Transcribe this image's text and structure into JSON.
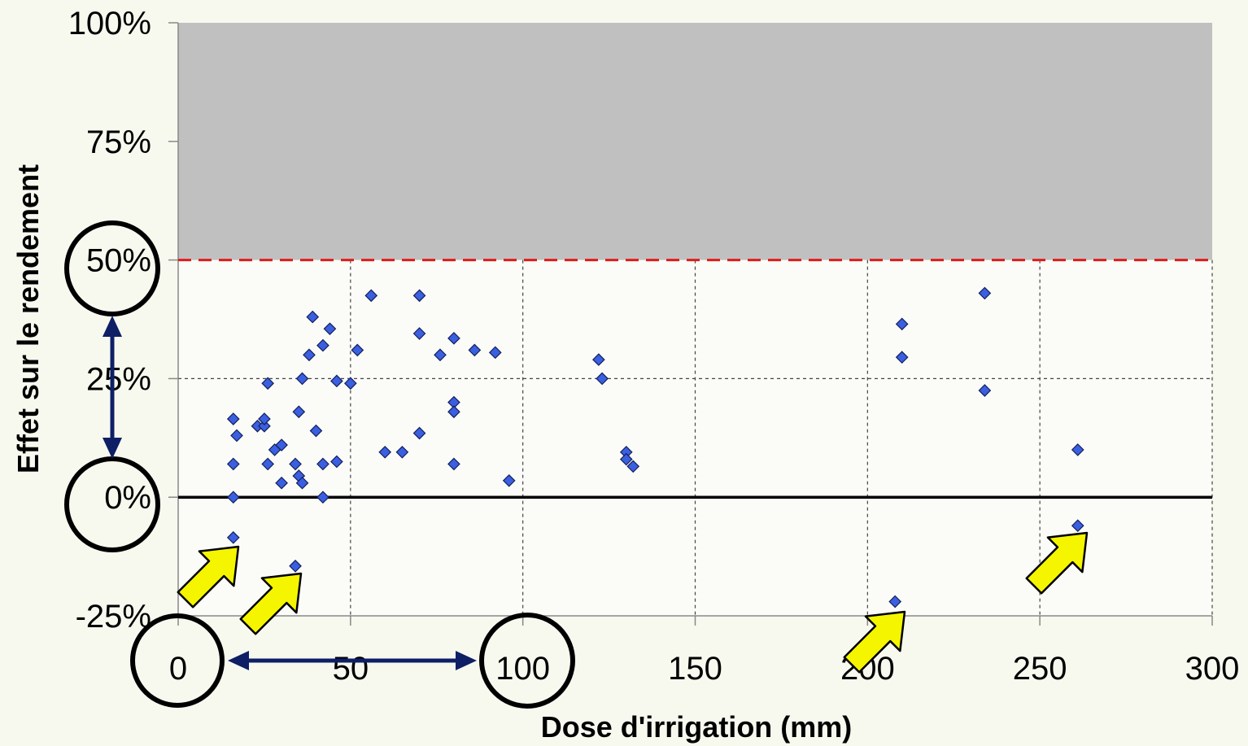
{
  "chart_data": {
    "type": "scatter",
    "title": "",
    "xlabel": "Dose d'irrigation (mm)",
    "ylabel": "Effet sur le rendement",
    "xlim": [
      0,
      300
    ],
    "ylim": [
      -25,
      100
    ],
    "x_ticks": [
      0,
      50,
      100,
      150,
      200,
      250,
      300
    ],
    "x_tick_labels": [
      "0",
      "50",
      "100",
      "150",
      "200",
      "250",
      "300"
    ],
    "y_ticks": [
      -25,
      0,
      25,
      50,
      75,
      100
    ],
    "y_tick_labels": [
      "-25%",
      "0%",
      "25%",
      "50%",
      "75%",
      "100%"
    ],
    "grid": "dashed, 0-50% region",
    "shaded_region": {
      "from": 50,
      "to": 100,
      "color": "#c0c0c0"
    },
    "threshold_line": {
      "y": 50,
      "color": "#e11b1b",
      "style": "dashed"
    },
    "zero_line": {
      "y": 0,
      "color": "#000000"
    },
    "marker_color": "#3a5fe0",
    "series": [
      {
        "values": [
          [
            16,
            7
          ],
          [
            16,
            0
          ],
          [
            16,
            -8.5
          ],
          [
            16,
            16.5
          ],
          [
            17,
            13
          ],
          [
            23,
            15
          ],
          [
            25,
            15
          ],
          [
            25,
            16.5
          ],
          [
            26,
            7
          ],
          [
            26,
            24
          ],
          [
            28,
            10
          ],
          [
            30,
            11
          ],
          [
            30,
            3
          ],
          [
            34,
            7
          ],
          [
            34,
            -14.5
          ],
          [
            35,
            4.5
          ],
          [
            35,
            18
          ],
          [
            36,
            25
          ],
          [
            36,
            3
          ],
          [
            38,
            30
          ],
          [
            39,
            38
          ],
          [
            40,
            14
          ],
          [
            42,
            32
          ],
          [
            42,
            7
          ],
          [
            42,
            0
          ],
          [
            44,
            35.5
          ],
          [
            46,
            7.5
          ],
          [
            46,
            24.5
          ],
          [
            50,
            24
          ],
          [
            52,
            31
          ],
          [
            56,
            42.5
          ],
          [
            60,
            9.5
          ],
          [
            65,
            9.5
          ],
          [
            70,
            42.5
          ],
          [
            70,
            34.5
          ],
          [
            70,
            13.5
          ],
          [
            76,
            30
          ],
          [
            80,
            33.5
          ],
          [
            80,
            20
          ],
          [
            80,
            18
          ],
          [
            80,
            7
          ],
          [
            86,
            31
          ],
          [
            92,
            30.5
          ],
          [
            96,
            3.5
          ],
          [
            122,
            29
          ],
          [
            123,
            25
          ],
          [
            130,
            9.5
          ],
          [
            130,
            8
          ],
          [
            132,
            6.5
          ],
          [
            208,
            -22
          ],
          [
            210,
            36.5
          ],
          [
            210,
            29.5
          ],
          [
            234,
            43
          ],
          [
            234,
            22.5
          ],
          [
            261,
            10
          ],
          [
            261,
            -6
          ]
        ]
      }
    ],
    "annotations": {
      "circles_around_ticks": [
        "50%",
        "0%",
        "0",
        "100"
      ],
      "double_arrows": [
        "y: 0% to 50%",
        "x: 0 to 100"
      ],
      "highlight_arrows_color": "#f5f500",
      "highlighted_points": [
        [
          16,
          -8.5
        ],
        [
          34,
          -14.5
        ],
        [
          208,
          -22
        ],
        [
          261,
          -6
        ]
      ]
    }
  }
}
